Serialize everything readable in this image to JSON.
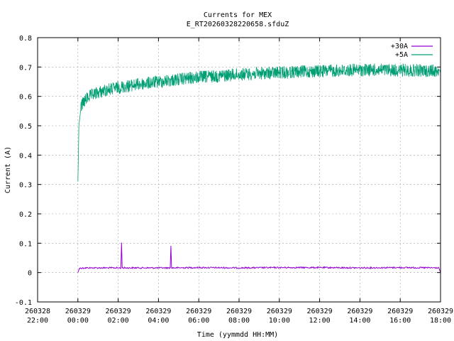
{
  "chart_data": {
    "type": "line",
    "title": "Currents for MEX",
    "subtitle": "E_RT20260328220658.sfduZ",
    "xlabel": "Time (yymmdd HH:MM)",
    "ylabel": "Current (A)",
    "xlim": [
      "260328 22:00",
      "260329 18:00"
    ],
    "ylim": [
      -0.1,
      0.8
    ],
    "grid": true,
    "legend_position": "top-right",
    "x_ticks": [
      {
        "date": "260328",
        "time": "22:00"
      },
      {
        "date": "260329",
        "time": "00:00"
      },
      {
        "date": "260329",
        "time": "02:00"
      },
      {
        "date": "260329",
        "time": "04:00"
      },
      {
        "date": "260329",
        "time": "06:00"
      },
      {
        "date": "260329",
        "time": "08:00"
      },
      {
        "date": "260329",
        "time": "10:00"
      },
      {
        "date": "260329",
        "time": "12:00"
      },
      {
        "date": "260329",
        "time": "14:00"
      },
      {
        "date": "260329",
        "time": "16:00"
      },
      {
        "date": "260329",
        "time": "18:00"
      }
    ],
    "y_ticks": [
      "-0.1",
      "0",
      "0.1",
      "0.2",
      "0.3",
      "0.4",
      "0.5",
      "0.6",
      "0.7",
      "0.8"
    ],
    "series": [
      {
        "name": "+30A",
        "color": "#9400d3",
        "points": [
          [
            "260329 00:00",
            0.0
          ],
          [
            "260329 00:05",
            0.015
          ],
          [
            "260329 00:30",
            0.016
          ],
          [
            "260329 01:00",
            0.016
          ],
          [
            "260329 01:30",
            0.016
          ],
          [
            "260329 02:00",
            0.016
          ],
          [
            "260329 02:08",
            0.016
          ],
          [
            "260329 02:10",
            0.102
          ],
          [
            "260329 02:12",
            0.016
          ],
          [
            "260329 03:00",
            0.016
          ],
          [
            "260329 04:00",
            0.016
          ],
          [
            "260329 04:35",
            0.016
          ],
          [
            "260329 04:37",
            0.091
          ],
          [
            "260329 04:39",
            0.016
          ],
          [
            "260329 06:00",
            0.017
          ],
          [
            "260329 08:00",
            0.016
          ],
          [
            "260329 10:00",
            0.017
          ],
          [
            "260329 12:00",
            0.017
          ],
          [
            "260329 14:00",
            0.016
          ],
          [
            "260329 16:00",
            0.017
          ],
          [
            "260329 17:55",
            0.016
          ],
          [
            "260329 18:00",
            0.0
          ]
        ]
      },
      {
        "name": "+5A",
        "color": "#009e73",
        "points": [
          [
            "260329 00:00",
            0.31
          ],
          [
            "260329 00:01",
            0.37
          ],
          [
            "260329 00:03",
            0.5
          ],
          [
            "260329 00:10",
            0.57
          ],
          [
            "260329 00:30",
            0.6
          ],
          [
            "260329 01:00",
            0.615
          ],
          [
            "260329 01:30",
            0.625
          ],
          [
            "260329 02:00",
            0.632
          ],
          [
            "260329 03:00",
            0.643
          ],
          [
            "260329 04:00",
            0.652
          ],
          [
            "260329 05:00",
            0.66
          ],
          [
            "260329 06:00",
            0.667
          ],
          [
            "260329 07:00",
            0.672
          ],
          [
            "260329 08:00",
            0.677
          ],
          [
            "260329 09:00",
            0.68
          ],
          [
            "260329 10:00",
            0.683
          ],
          [
            "260329 11:00",
            0.686
          ],
          [
            "260329 12:00",
            0.688
          ],
          [
            "260329 13:00",
            0.69
          ],
          [
            "260329 14:00",
            0.692
          ],
          [
            "260329 15:00",
            0.692
          ],
          [
            "260329 16:00",
            0.691
          ],
          [
            "260329 17:00",
            0.69
          ],
          [
            "260329 17:58",
            0.689
          ],
          [
            "260329 18:00",
            0.68
          ]
        ]
      }
    ]
  }
}
